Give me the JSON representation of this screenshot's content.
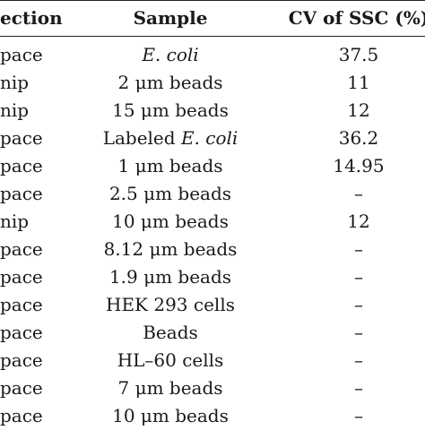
{
  "table": {
    "headers": {
      "detection": "ection",
      "sample": "Sample",
      "cv": "CV of SSC (%)"
    },
    "rows": [
      {
        "detection": "pace",
        "sample": {
          "prefix": "",
          "italic": "E. coli",
          "suffix": ""
        },
        "cv": "37.5"
      },
      {
        "detection": "nip",
        "sample": {
          "prefix": "2 μm beads",
          "italic": "",
          "suffix": ""
        },
        "cv": "11"
      },
      {
        "detection": "nip",
        "sample": {
          "prefix": "15 μm beads",
          "italic": "",
          "suffix": ""
        },
        "cv": "12"
      },
      {
        "detection": "pace",
        "sample": {
          "prefix": "Labeled ",
          "italic": "E. coli",
          "suffix": ""
        },
        "cv": "36.2"
      },
      {
        "detection": "pace",
        "sample": {
          "prefix": "1 μm beads",
          "italic": "",
          "suffix": ""
        },
        "cv": "14.95"
      },
      {
        "detection": "pace",
        "sample": {
          "prefix": "2.5 μm beads",
          "italic": "",
          "suffix": ""
        },
        "cv": "–"
      },
      {
        "detection": "nip",
        "sample": {
          "prefix": "10 μm beads",
          "italic": "",
          "suffix": ""
        },
        "cv": "12"
      },
      {
        "detection": "pace",
        "sample": {
          "prefix": "8.12 μm beads",
          "italic": "",
          "suffix": ""
        },
        "cv": "–"
      },
      {
        "detection": "pace",
        "sample": {
          "prefix": "1.9 μm beads",
          "italic": "",
          "suffix": ""
        },
        "cv": "–"
      },
      {
        "detection": "pace",
        "sample": {
          "prefix": "HEK 293 cells",
          "italic": "",
          "suffix": ""
        },
        "cv": "–"
      },
      {
        "detection": "pace",
        "sample": {
          "prefix": "Beads",
          "italic": "",
          "suffix": ""
        },
        "cv": "–"
      },
      {
        "detection": "pace",
        "sample": {
          "prefix": "HL–60 cells",
          "italic": "",
          "suffix": ""
        },
        "cv": "–"
      },
      {
        "detection": "pace",
        "sample": {
          "prefix": "7 μm beads",
          "italic": "",
          "suffix": ""
        },
        "cv": "–"
      },
      {
        "detection": "pace",
        "sample": {
          "prefix": "10 μm beads",
          "italic": "",
          "suffix": ""
        },
        "cv": "–"
      }
    ]
  }
}
